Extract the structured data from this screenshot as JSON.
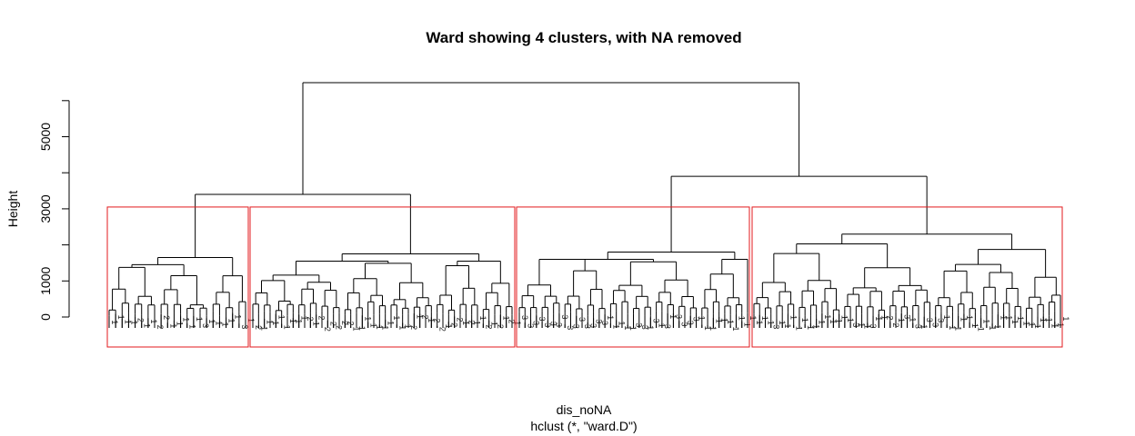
{
  "chart_data": {
    "type": "dendrogram",
    "title": "Ward showing 4 clusters, with NA removed",
    "ylabel": "Height",
    "xlabel": "dis_noNA",
    "sublabel": "hclust (*, \"ward.D\")",
    "ylim": [
      0,
      6800
    ],
    "yticks": [
      0,
      1000,
      3000,
      5000
    ],
    "y_minor_ticks": [
      2000,
      4000,
      6000
    ],
    "rect_colour": "#e31a1c",
    "rect_height": 3050,
    "merges": [
      {
        "height": 6500
      },
      {
        "height": 3400
      },
      {
        "height": 3900
      },
      {
        "height": 1650
      },
      {
        "height": 1750
      },
      {
        "height": 1800
      },
      {
        "height": 2300
      }
    ],
    "clusters": [
      {
        "id": 1,
        "leaf_count": 22,
        "leaf_labels": [
          "1",
          "1",
          "1",
          "1",
          "2",
          "1",
          "1",
          "2",
          "2",
          "1",
          "1",
          "1",
          "1",
          "1",
          "3",
          "1",
          "1",
          "1",
          "1",
          "1",
          "3",
          "1"
        ],
        "top_merge_height": 1650
      },
      {
        "id": 2,
        "leaf_count": 46,
        "leaf_labels": [
          "2",
          "1",
          "1",
          "1",
          "1",
          "1",
          "1",
          "1",
          "1",
          "2",
          "1",
          "2",
          "2",
          "2",
          "2",
          "2",
          "2",
          "1",
          "1",
          "1",
          "1",
          "1",
          "1",
          "1",
          "1",
          "1",
          "1",
          "2",
          "1",
          "2",
          "1",
          "2",
          "2",
          "1",
          "2",
          "2",
          "1",
          "2",
          "1",
          "1",
          "2",
          "1",
          "2",
          "1",
          "2",
          "1"
        ],
        "top_merge_height": 1750
      },
      {
        "id": 3,
        "leaf_count": 41,
        "leaf_labels": [
          "3",
          "3",
          "3",
          "3",
          "3",
          "3",
          "3",
          "3",
          "3",
          "3",
          "3",
          "3",
          "3",
          "3",
          "3",
          "1",
          "1",
          "1",
          "1",
          "1",
          "3",
          "3",
          "1",
          "3",
          "1",
          "3",
          "1",
          "3",
          "3",
          "3",
          "3",
          "1",
          "1",
          "1",
          "1",
          "1",
          "1",
          "1",
          "1",
          "1",
          "1"
        ],
        "top_merge_height": 1800
      },
      {
        "id": 4,
        "leaf_count": 55,
        "leaf_labels": [
          "1",
          "1",
          "1",
          "3",
          "1",
          "1",
          "1",
          "1",
          "1",
          "1",
          "1",
          "1",
          "1",
          "1",
          "1",
          "1",
          "1",
          "3",
          "1",
          "1",
          "3",
          "1",
          "1",
          "2",
          "2",
          "1",
          "3",
          "1",
          "3",
          "1",
          "3",
          "3",
          "3",
          "1",
          "1",
          "1",
          "1",
          "1",
          "1",
          "1",
          "1",
          "1",
          "1",
          "1",
          "1",
          "1",
          "1",
          "1",
          "1",
          "1",
          "1",
          "1",
          "1",
          "1",
          "1"
        ],
        "top_merge_height": 2300
      }
    ]
  }
}
